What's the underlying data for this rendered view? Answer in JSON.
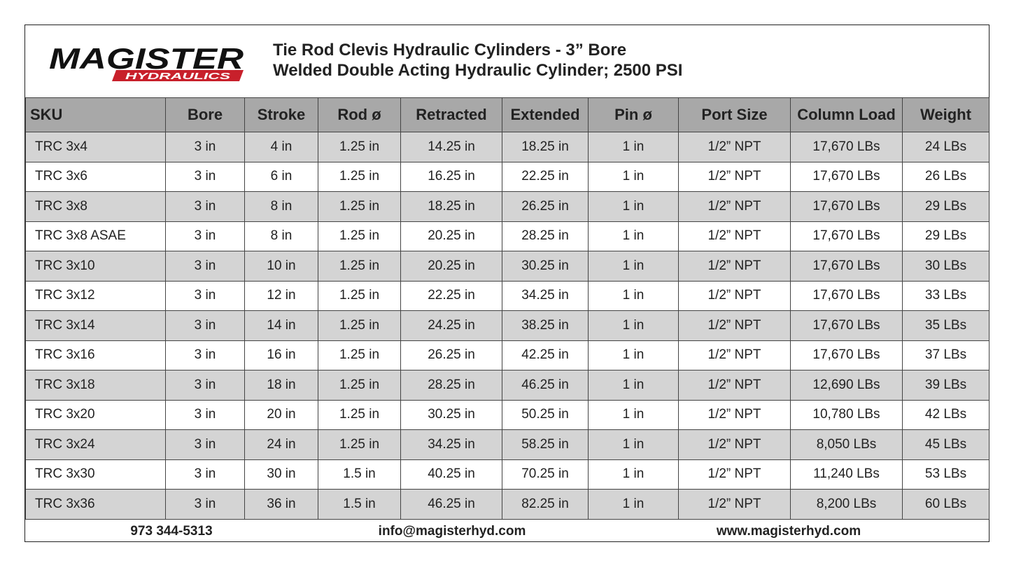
{
  "logo": {
    "name": "MAGISTER",
    "tagline": "HYDRAULICS"
  },
  "header": {
    "title": "Tie Rod Clevis Hydraulic Cylinders - 3” Bore",
    "subtitle": "Welded Double Acting Hydraulic Cylinder; 2500 PSI"
  },
  "table": {
    "columns": [
      "SKU",
      "Bore",
      "Stroke",
      "Rod ø",
      "Retracted",
      "Extended",
      "Pin ø",
      "Port Size",
      "Column Load",
      "Weight"
    ],
    "rows": [
      [
        "TRC 3x4",
        "3 in",
        "4 in",
        "1.25 in",
        "14.25 in",
        "18.25 in",
        "1 in",
        "1/2” NPT",
        "17,670 LBs",
        "24 LBs"
      ],
      [
        "TRC 3x6",
        "3 in",
        "6 in",
        "1.25 in",
        "16.25 in",
        "22.25 in",
        "1 in",
        "1/2” NPT",
        "17,670 LBs",
        "26 LBs"
      ],
      [
        "TRC 3x8",
        "3 in",
        "8 in",
        "1.25 in",
        "18.25 in",
        "26.25 in",
        "1 in",
        "1/2” NPT",
        "17,670 LBs",
        "29 LBs"
      ],
      [
        "TRC 3x8 ASAE",
        "3 in",
        "8 in",
        "1.25 in",
        "20.25 in",
        "28.25 in",
        "1 in",
        "1/2” NPT",
        "17,670 LBs",
        "29 LBs"
      ],
      [
        "TRC 3x10",
        "3 in",
        "10 in",
        "1.25 in",
        "20.25 in",
        "30.25 in",
        "1 in",
        "1/2” NPT",
        "17,670 LBs",
        "30 LBs"
      ],
      [
        "TRC 3x12",
        "3 in",
        "12 in",
        "1.25 in",
        "22.25 in",
        "34.25 in",
        "1 in",
        "1/2” NPT",
        "17,670 LBs",
        "33 LBs"
      ],
      [
        "TRC 3x14",
        "3 in",
        "14 in",
        "1.25 in",
        "24.25 in",
        "38.25 in",
        "1 in",
        "1/2” NPT",
        "17,670 LBs",
        "35 LBs"
      ],
      [
        "TRC 3x16",
        "3 in",
        "16 in",
        "1.25 in",
        "26.25 in",
        "42.25 in",
        "1 in",
        "1/2” NPT",
        "17,670 LBs",
        "37 LBs"
      ],
      [
        "TRC 3x18",
        "3 in",
        "18 in",
        "1.25 in",
        "28.25 in",
        "46.25 in",
        "1 in",
        "1/2” NPT",
        "12,690 LBs",
        "39 LBs"
      ],
      [
        "TRC 3x20",
        "3 in",
        "20 in",
        "1.25 in",
        "30.25 in",
        "50.25 in",
        "1 in",
        "1/2” NPT",
        "10,780 LBs",
        "42 LBs"
      ],
      [
        "TRC 3x24",
        "3 in",
        "24 in",
        "1.25 in",
        "34.25 in",
        "58.25 in",
        "1 in",
        "1/2” NPT",
        "8,050 LBs",
        "45 LBs"
      ],
      [
        "TRC 3x30",
        "3 in",
        "30 in",
        "1.5 in",
        "40.25 in",
        "70.25 in",
        "1 in",
        "1/2” NPT",
        "11,240 LBs",
        "53 LBs"
      ],
      [
        "TRC 3x36",
        "3 in",
        "36 in",
        "1.5 in",
        "46.25 in",
        "82.25 in",
        "1 in",
        "1/2” NPT",
        "8,200 LBs",
        "60 LBs"
      ]
    ]
  },
  "footer": {
    "phone": "973 344-5313",
    "email": "info@magisterhyd.com",
    "website": "www.magisterhyd.com"
  }
}
